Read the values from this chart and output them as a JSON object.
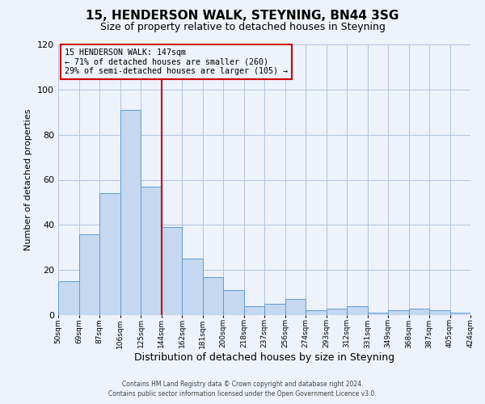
{
  "title": "15, HENDERSON WALK, STEYNING, BN44 3SG",
  "subtitle": "Size of property relative to detached houses in Steyning",
  "xlabel": "Distribution of detached houses by size in Steyning",
  "ylabel": "Number of detached properties",
  "bar_values": [
    15,
    36,
    54,
    91,
    57,
    39,
    25,
    17,
    11,
    4,
    5,
    7,
    2,
    3,
    4,
    1,
    2,
    3,
    2,
    1
  ],
  "bin_labels": [
    "50sqm",
    "69sqm",
    "87sqm",
    "106sqm",
    "125sqm",
    "144sqm",
    "162sqm",
    "181sqm",
    "200sqm",
    "218sqm",
    "237sqm",
    "256sqm",
    "274sqm",
    "293sqm",
    "312sqm",
    "331sqm",
    "349sqm",
    "368sqm",
    "387sqm",
    "405sqm",
    "424sqm"
  ],
  "bar_color": "#c5d8f0",
  "bar_edge_color": "#5b9bd5",
  "vline_x": 5,
  "vline_color": "#cc0000",
  "annotation_line1": "15 HENDERSON WALK: 147sqm",
  "annotation_line2": "← 71% of detached houses are smaller (260)",
  "annotation_line3": "29% of semi-detached houses are larger (105) →",
  "annotation_box_color": "#cc0000",
  "ylim": [
    0,
    120
  ],
  "yticks": [
    0,
    20,
    40,
    60,
    80,
    100,
    120
  ],
  "grid_color": "#b0c4de",
  "background_color": "#eef2fb",
  "footer_line1": "Contains HM Land Registry data © Crown copyright and database right 2024.",
  "footer_line2": "Contains public sector information licensed under the Open Government Licence v3.0."
}
